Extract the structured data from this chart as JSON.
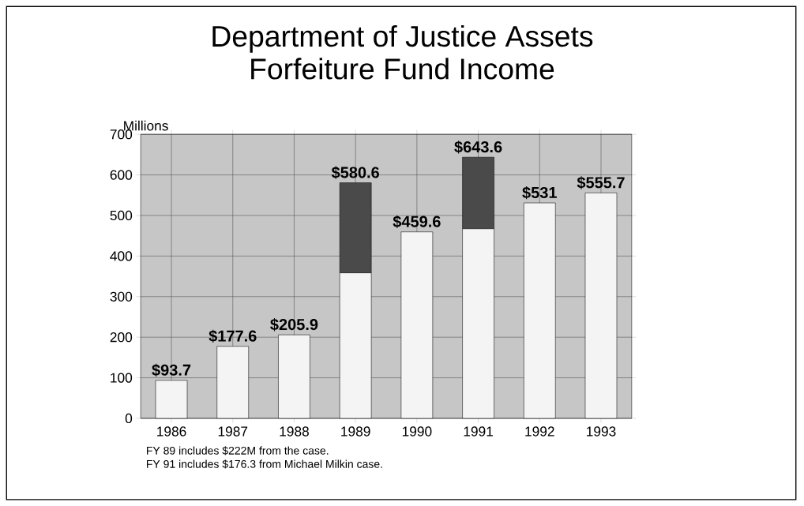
{
  "chart_data": {
    "type": "bar",
    "title": "Department of Justice Assets Forfeiture Fund Income",
    "ylabel": "Millions",
    "categories": [
      "1986",
      "1987",
      "1988",
      "1989",
      "1990",
      "1991",
      "1992",
      "1993"
    ],
    "stacked": true,
    "series": [
      {
        "color": "#f4f4f4",
        "values": [
          93.7,
          177.6,
          205.9,
          358.6,
          459.6,
          467.3,
          531,
          555.7
        ]
      },
      {
        "color": "#4a4a4a",
        "values": [
          null,
          null,
          null,
          222,
          null,
          176.3,
          null,
          null
        ]
      }
    ],
    "totals": [
      "$93.7",
      "$177.6",
      "$205.9",
      "$580.6",
      "$459.6",
      "$643.6",
      "$531",
      "$555.7"
    ],
    "ylim": [
      0,
      700
    ],
    "yticks": [
      0,
      100,
      200,
      300,
      400,
      500,
      600,
      700
    ],
    "grid": true,
    "annotations": [
      "FY 89 includes $222M from the case.",
      "FY 91 includes $176.3 from Michael Milkin case."
    ]
  }
}
